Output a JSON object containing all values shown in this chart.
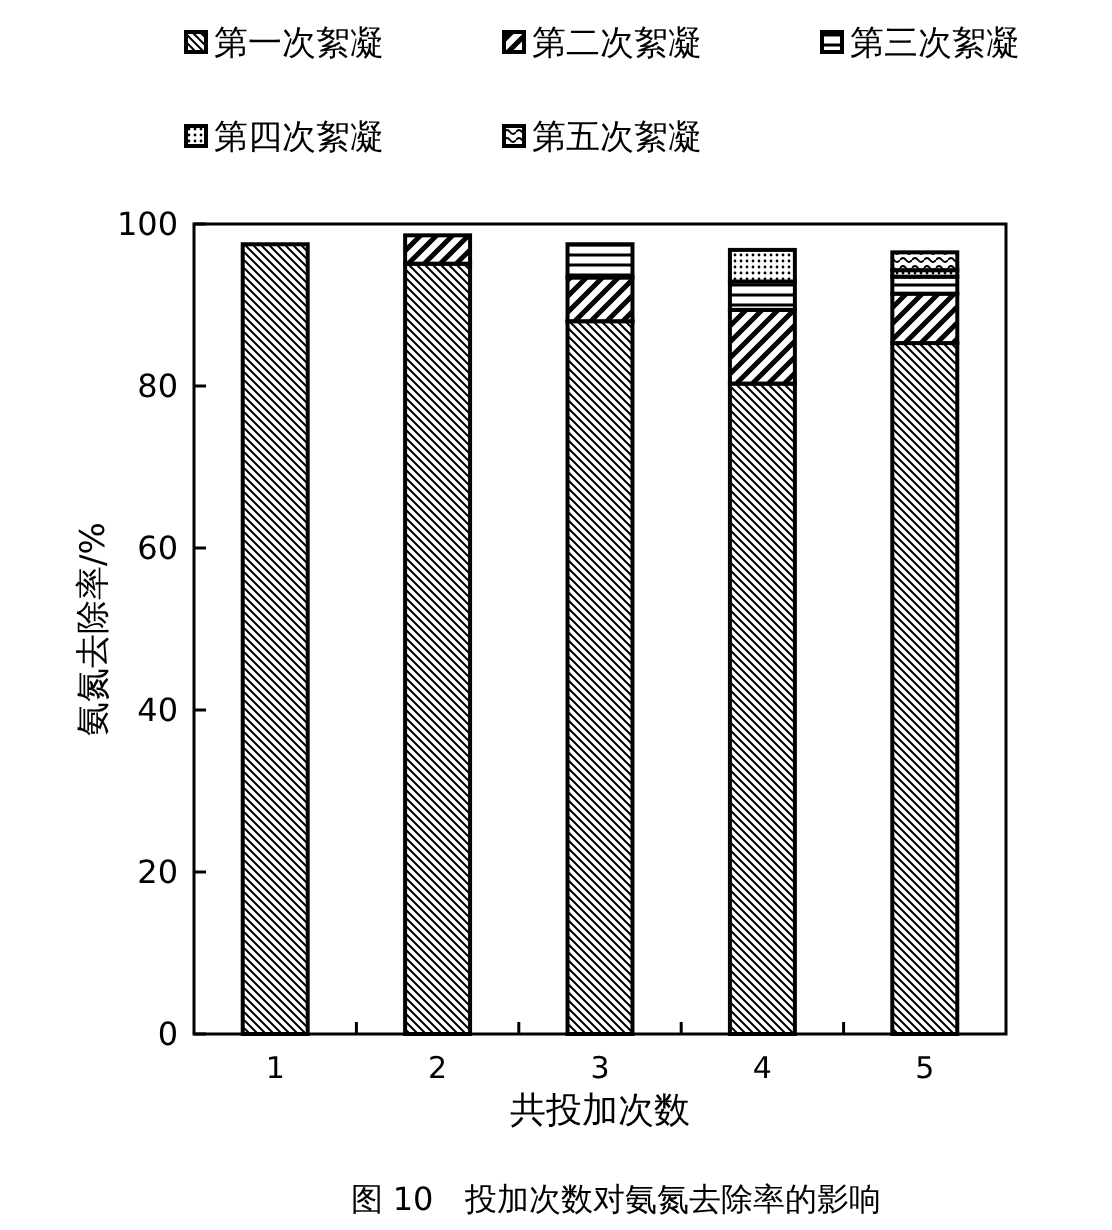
{
  "chart_data": {
    "type": "bar",
    "stacked": true,
    "title": "图 10　投加次数对氨氮去除率的影响",
    "xlabel": "共投加次数",
    "ylabel": "氨氮去除率/%",
    "categories": [
      "1",
      "2",
      "3",
      "4",
      "5"
    ],
    "ylim": [
      0,
      100
    ],
    "yticks": [
      0,
      20,
      40,
      60,
      80,
      100
    ],
    "legend": "top",
    "series": [
      {
        "name": "第一次絮凝",
        "color": "#000000",
        "values": [
          97.5,
          95.1,
          88,
          80.3,
          85.3
        ]
      },
      {
        "name": "第二次絮凝",
        "color": "#000000",
        "values": [
          null,
          3.5,
          5.4,
          9.1,
          6.1
        ]
      },
      {
        "name": "第三次絮凝",
        "color": "#000000",
        "values": [
          null,
          null,
          4.1,
          3.5,
          2.1
        ]
      },
      {
        "name": "第四次絮凝",
        "color": "#000000",
        "values": [
          null,
          null,
          null,
          3.9,
          0.8
        ]
      },
      {
        "name": "第五次絮凝",
        "color": "#000000",
        "values": [
          null,
          null,
          null,
          null,
          2.2
        ]
      }
    ]
  }
}
